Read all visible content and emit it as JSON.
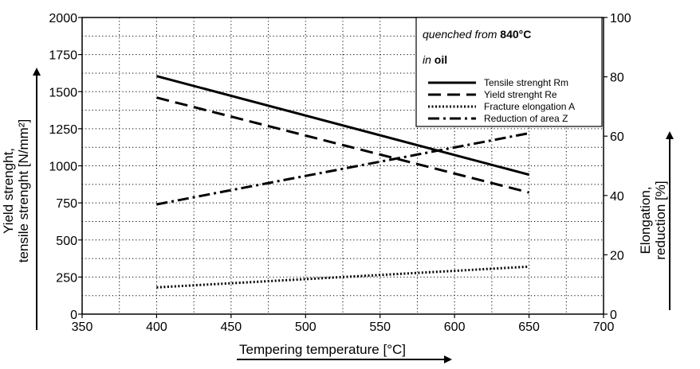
{
  "chart_data": {
    "type": "line",
    "xlabel": "Tempering temperature [°C]",
    "ylabel_left_line1": "Yield strenght,",
    "ylabel_left_line2": "tensile strenght [N/mm²]",
    "ylabel_right_line1": "Elongation,",
    "ylabel_right_line2": "reduction [%]",
    "xlim": [
      350,
      700
    ],
    "x_ticks": [
      350,
      400,
      450,
      500,
      550,
      600,
      650,
      700
    ],
    "ylim_left": [
      0,
      2000
    ],
    "y_ticks_left": [
      0,
      250,
      500,
      750,
      1000,
      1250,
      1500,
      1750,
      2000
    ],
    "ylim_right": [
      0,
      100
    ],
    "y_ticks_right": [
      0,
      20,
      40,
      60,
      80,
      100
    ],
    "grid": "dotted",
    "legend_position": "top-right",
    "annotation": {
      "line1_prefix": "quenched from ",
      "line1_value": "840°C",
      "line2_prefix": "in ",
      "line2_value": "oil"
    },
    "series": [
      {
        "name": "Tensile strenght Rm",
        "axis": "left",
        "style": "solid",
        "x": [
          400,
          650
        ],
        "y": [
          1605,
          940
        ]
      },
      {
        "name": "Yield strenght Re",
        "axis": "left",
        "style": "dashed",
        "x": [
          400,
          650
        ],
        "y": [
          1460,
          820
        ]
      },
      {
        "name": "Fracture elongation A",
        "axis": "right",
        "style": "dotted",
        "x": [
          400,
          650
        ],
        "y": [
          9,
          16
        ]
      },
      {
        "name": "Reduction of area Z",
        "axis": "right",
        "style": "dashdot",
        "x": [
          400,
          650
        ],
        "y": [
          37,
          61
        ]
      }
    ]
  }
}
